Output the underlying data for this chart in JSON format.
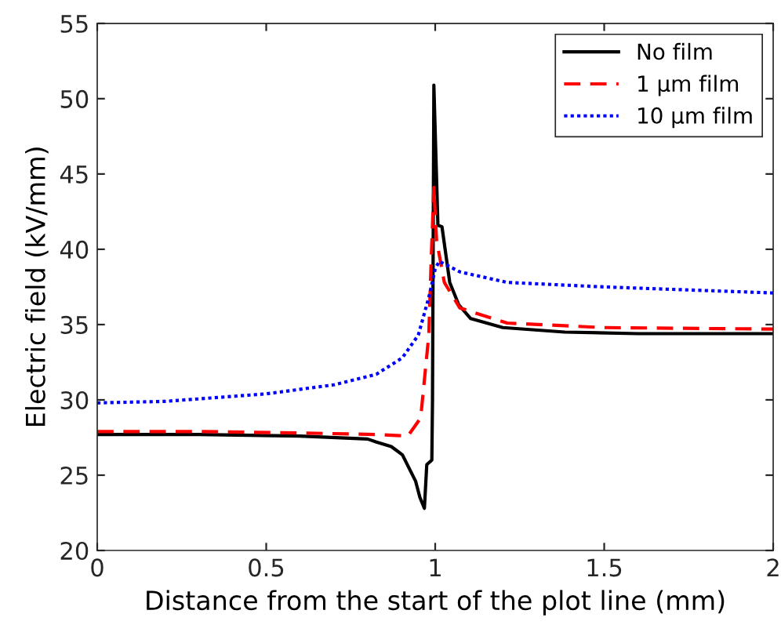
{
  "chart_data": {
    "type": "line",
    "xlabel": "Distance from the start of the plot line (mm)",
    "ylabel": "Electric field (kV/mm)",
    "xlim": [
      0,
      2
    ],
    "ylim": [
      20,
      55
    ],
    "xticks": [
      0,
      0.5,
      1,
      1.5,
      2
    ],
    "yticks": [
      20,
      25,
      30,
      35,
      40,
      45,
      50,
      55
    ],
    "grid": false,
    "legend": "top right",
    "series": [
      {
        "name": "No film",
        "color": "#000000",
        "line_style": "solid",
        "x": [
          0,
          0.3,
          0.6,
          0.8,
          0.826,
          0.87,
          0.903,
          0.942,
          0.955,
          0.968,
          0.975,
          0.99,
          0.992,
          0.996,
          1.008,
          1.02,
          1.043,
          1.07,
          1.105,
          1.2,
          1.383,
          1.6,
          2
        ],
        "values": [
          27.7,
          27.7,
          27.6,
          27.4,
          27.2,
          26.9,
          26.35,
          24.6,
          23.5,
          22.8,
          25.7,
          26,
          30,
          50.9,
          41.6,
          41.5,
          37.8,
          36.3,
          35.4,
          34.8,
          34.5,
          34.4,
          34.4
        ]
      },
      {
        "name": "1 µm film",
        "color": "#ff0000",
        "line_style": "dashed",
        "x": [
          0,
          0.3,
          0.6,
          0.826,
          0.919,
          0.957,
          0.981,
          0.988,
          0.996,
          1.004,
          1.027,
          1.073,
          1.213,
          1.5,
          2
        ],
        "values": [
          27.9,
          27.9,
          27.8,
          27.7,
          27.6,
          28.8,
          34.3,
          39.2,
          44.1,
          40.6,
          37.8,
          36.1,
          35.1,
          34.8,
          34.7
        ]
      },
      {
        "name": "10 µm film",
        "color": "#0000ff",
        "line_style": "dotted",
        "x": [
          0,
          0.2,
          0.5,
          0.7,
          0.826,
          0.903,
          0.95,
          0.981,
          1.0,
          1.012,
          1.073,
          1.213,
          1.5,
          2
        ],
        "values": [
          29.8,
          29.9,
          30.4,
          31.0,
          31.7,
          32.8,
          34.3,
          36.8,
          38.7,
          39.2,
          38.5,
          37.8,
          37.5,
          37.1
        ]
      }
    ]
  }
}
